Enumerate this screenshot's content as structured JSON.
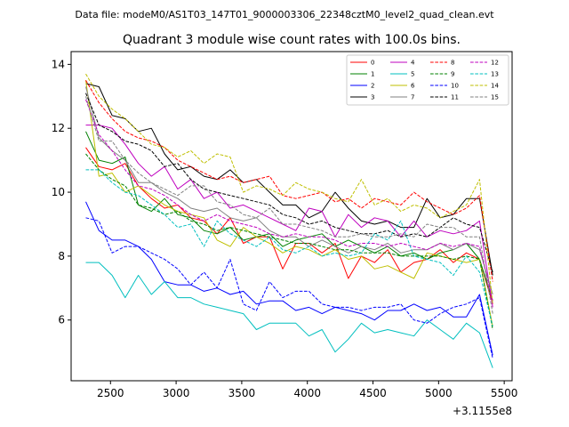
{
  "suptitle": "Data file: modeM0/AS1T03_147T01_9000003306_22348cztM0_level2_quad_clean.evt",
  "chart_data": {
    "type": "line",
    "title": "Quadrant 3 module wise count rates with 100.0s bins.",
    "xlabel": "",
    "ylabel": "",
    "x_offset_label": "+3.1155e8",
    "xlim": [
      2200,
      5560
    ],
    "ylim": [
      4.1,
      14.4
    ],
    "xticks": [
      2500,
      3000,
      3500,
      4000,
      4500,
      5000,
      5500
    ],
    "yticks": [
      6,
      8,
      10,
      12,
      14
    ],
    "legend_position": "upper-right",
    "legend_columns": 4,
    "x": [
      2312,
      2412,
      2512,
      2612,
      2712,
      2812,
      2912,
      3012,
      3112,
      3212,
      3312,
      3412,
      3512,
      3612,
      3712,
      3812,
      3912,
      4012,
      4112,
      4212,
      4312,
      4412,
      4512,
      4612,
      4712,
      4812,
      4912,
      5012,
      5112,
      5212,
      5312,
      5412
    ],
    "series": [
      {
        "name": "0",
        "color": "#ff0000",
        "dash": "solid",
        "values": [
          11.4,
          10.8,
          10.7,
          10.9,
          10.2,
          9.8,
          9.5,
          9.6,
          9.2,
          9.1,
          8.7,
          9.2,
          8.4,
          8.6,
          8.6,
          7.6,
          8.4,
          8.4,
          8.1,
          8.4,
          7.3,
          8.0,
          7.8,
          8.2,
          7.5,
          7.8,
          7.9,
          8.2,
          7.8,
          8.1,
          7.9,
          6.5
        ]
      },
      {
        "name": "1",
        "color": "#008000",
        "dash": "solid",
        "values": [
          11.9,
          11.0,
          10.9,
          11.1,
          9.6,
          9.4,
          9.8,
          9.3,
          9.2,
          8.8,
          8.7,
          8.9,
          8.5,
          8.6,
          8.7,
          8.3,
          8.5,
          8.6,
          8.7,
          8.3,
          8.5,
          8.3,
          8.1,
          8.3,
          8.0,
          8.1,
          7.9,
          8.1,
          8.2,
          8.4,
          7.9,
          6.6
        ]
      },
      {
        "name": "2",
        "color": "#0000ff",
        "dash": "solid",
        "values": [
          9.7,
          8.8,
          8.5,
          8.5,
          8.3,
          7.9,
          7.2,
          7.1,
          7.1,
          6.9,
          7.0,
          6.8,
          6.9,
          6.5,
          6.6,
          6.6,
          6.3,
          6.4,
          6.2,
          6.4,
          6.3,
          6.2,
          6.0,
          6.3,
          6.3,
          6.5,
          6.3,
          6.4,
          6.1,
          6.1,
          6.8,
          4.9
        ]
      },
      {
        "name": "3",
        "color": "#000000",
        "dash": "solid",
        "values": [
          13.4,
          13.3,
          12.4,
          12.3,
          11.9,
          12.0,
          11.2,
          10.7,
          10.8,
          10.5,
          10.4,
          10.7,
          10.3,
          10.4,
          10.0,
          9.6,
          9.6,
          9.2,
          9.4,
          10.0,
          9.5,
          9.1,
          9.0,
          9.1,
          8.9,
          8.9,
          9.8,
          9.2,
          9.3,
          9.8,
          9.8,
          7.4
        ]
      },
      {
        "name": "4",
        "color": "#bf00bf",
        "dash": "solid",
        "values": [
          12.1,
          12.1,
          12.0,
          11.5,
          10.9,
          10.5,
          10.8,
          10.1,
          10.4,
          9.8,
          10.0,
          9.5,
          9.6,
          9.4,
          9.2,
          9.0,
          8.8,
          9.5,
          9.4,
          8.6,
          9.3,
          8.9,
          9.2,
          9.1,
          8.6,
          9.1,
          8.6,
          8.8,
          8.7,
          8.8,
          9.1,
          6.4
        ]
      },
      {
        "name": "5",
        "color": "#00bfbf",
        "dash": "solid",
        "values": [
          7.8,
          7.8,
          7.4,
          6.7,
          7.4,
          6.8,
          7.2,
          6.7,
          6.7,
          6.5,
          6.4,
          6.3,
          6.2,
          5.7,
          5.9,
          5.9,
          5.9,
          5.5,
          5.7,
          5.0,
          5.4,
          5.9,
          5.6,
          5.7,
          5.6,
          5.5,
          6.0,
          5.7,
          5.4,
          5.9,
          5.6,
          4.5
        ]
      },
      {
        "name": "6",
        "color": "#bfbf00",
        "dash": "solid",
        "values": [
          13.5,
          10.5,
          10.6,
          10.0,
          10.2,
          9.9,
          9.6,
          9.4,
          9.3,
          9.2,
          8.5,
          8.3,
          8.9,
          8.6,
          8.4,
          8.1,
          8.3,
          8.2,
          8.0,
          8.2,
          7.9,
          8.0,
          7.6,
          7.7,
          7.5,
          7.3,
          8.1,
          8.0,
          7.9,
          7.8,
          7.9,
          5.8
        ]
      },
      {
        "name": "7",
        "color": "#808080",
        "dash": "solid",
        "values": [
          13.3,
          11.7,
          11.3,
          11.0,
          10.3,
          10.3,
          10.0,
          9.8,
          9.5,
          9.4,
          9.5,
          9.2,
          9.1,
          9.2,
          8.8,
          8.6,
          8.6,
          8.3,
          8.5,
          8.3,
          8.1,
          8.3,
          8.2,
          8.4,
          8.1,
          8.2,
          8.2,
          8.4,
          8.2,
          8.4,
          8.2,
          6.8
        ]
      },
      {
        "name": "8",
        "color": "#ff0000",
        "dash": "dashed",
        "values": [
          13.5,
          12.8,
          12.3,
          11.9,
          11.7,
          11.6,
          11.4,
          11.0,
          10.8,
          10.6,
          10.4,
          10.5,
          10.3,
          10.4,
          10.5,
          9.9,
          9.8,
          9.9,
          10.0,
          9.7,
          9.8,
          9.5,
          9.8,
          9.7,
          9.6,
          10.0,
          9.7,
          9.5,
          9.3,
          9.5,
          9.9,
          7.2
        ]
      },
      {
        "name": "9",
        "color": "#008000",
        "dash": "dashed",
        "values": [
          11.2,
          10.7,
          10.4,
          10.2,
          9.6,
          9.5,
          9.3,
          9.4,
          9.1,
          9.0,
          8.8,
          8.9,
          8.8,
          8.7,
          8.6,
          8.5,
          8.4,
          8.4,
          8.3,
          8.2,
          8.2,
          8.1,
          8.1,
          8.1,
          8.0,
          8.0,
          8.0,
          8.0,
          7.9,
          8.0,
          7.9,
          5.7
        ]
      },
      {
        "name": "10",
        "color": "#0000ff",
        "dash": "dashed",
        "values": [
          9.2,
          9.1,
          8.1,
          8.3,
          8.3,
          8.1,
          7.9,
          7.6,
          7.1,
          7.5,
          7.0,
          7.9,
          6.5,
          6.3,
          7.2,
          6.7,
          6.9,
          6.9,
          6.5,
          6.4,
          6.4,
          6.3,
          6.4,
          6.4,
          6.5,
          6.0,
          5.9,
          6.2,
          6.4,
          6.5,
          6.7,
          4.8
        ]
      },
      {
        "name": "11",
        "color": "#000000",
        "dash": "dashed",
        "values": [
          13.1,
          12.1,
          11.9,
          11.6,
          11.5,
          11.3,
          10.8,
          10.9,
          10.4,
          10.1,
          10.0,
          9.9,
          9.8,
          9.7,
          9.6,
          9.3,
          9.2,
          9.0,
          9.1,
          8.9,
          8.8,
          8.7,
          8.7,
          8.8,
          8.6,
          8.7,
          8.6,
          8.9,
          9.2,
          9.0,
          8.9,
          7.5
        ]
      },
      {
        "name": "12",
        "color": "#bf00bf",
        "dash": "dashed",
        "values": [
          12.9,
          11.8,
          11.3,
          10.7,
          10.2,
          10.1,
          9.9,
          9.6,
          9.3,
          9.1,
          9.3,
          9.1,
          9.0,
          8.9,
          8.7,
          8.6,
          8.7,
          8.6,
          8.6,
          8.5,
          8.3,
          8.4,
          8.4,
          8.3,
          8.4,
          8.3,
          8.2,
          8.4,
          8.3,
          8.4,
          8.3,
          6.6
        ]
      },
      {
        "name": "13",
        "color": "#00bfbf",
        "dash": "dashed",
        "values": [
          10.7,
          10.7,
          10.3,
          10.0,
          9.9,
          9.6,
          9.3,
          8.9,
          9.0,
          8.3,
          9.1,
          8.7,
          8.5,
          8.3,
          8.6,
          8.2,
          8.1,
          8.3,
          8.0,
          8.1,
          8.0,
          8.1,
          8.7,
          8.5,
          9.1,
          8.0,
          7.9,
          7.8,
          7.4,
          8.0,
          7.5,
          5.8
        ]
      },
      {
        "name": "14",
        "color": "#bfbf00",
        "dash": "dashed",
        "values": [
          13.7,
          13.0,
          12.6,
          12.3,
          11.9,
          11.5,
          11.4,
          11.1,
          11.3,
          10.9,
          11.2,
          11.1,
          10.0,
          10.2,
          10.1,
          9.9,
          10.3,
          10.1,
          10.0,
          9.8,
          9.7,
          10.4,
          9.6,
          9.8,
          9.4,
          9.6,
          9.5,
          9.2,
          9.4,
          9.6,
          10.4,
          6.5
        ]
      },
      {
        "name": "15",
        "color": "#808080",
        "dash": "dashed",
        "values": [
          13.0,
          11.6,
          11.6,
          11.0,
          10.6,
          10.3,
          10.1,
          9.9,
          10.2,
          10.2,
          9.7,
          9.6,
          9.3,
          9.2,
          9.5,
          9.0,
          9.0,
          8.9,
          8.8,
          8.6,
          8.6,
          8.7,
          8.6,
          8.6,
          8.7,
          8.6,
          9.0,
          8.9,
          8.9,
          8.6,
          8.6,
          6.2
        ]
      }
    ]
  }
}
